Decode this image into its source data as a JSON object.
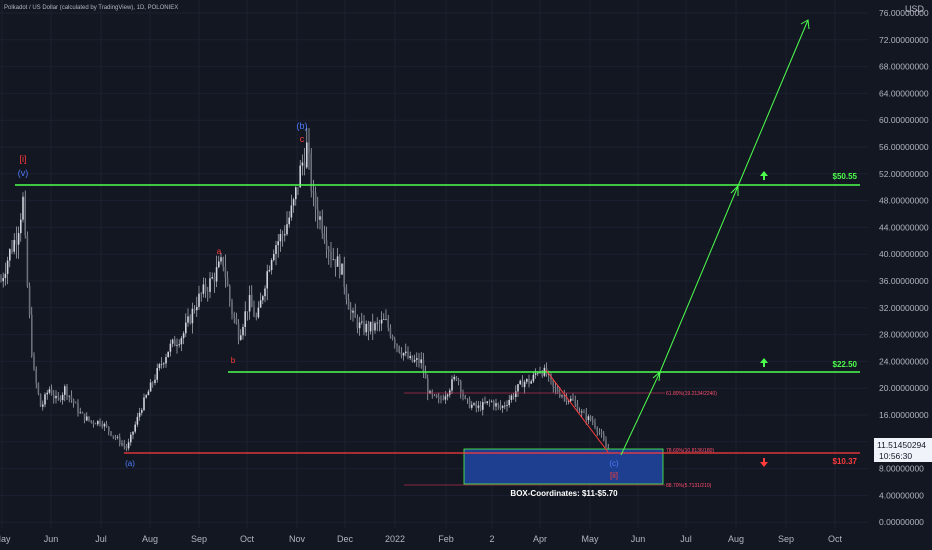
{
  "header": {
    "symbol_line": "Polkadot / US Dollar (calculated by TradingView), 1D, POLONIEX"
  },
  "price_axis": {
    "currency": "USD",
    "ticks": [
      "76.00000000",
      "72.00000000",
      "68.00000000",
      "64.00000000",
      "60.00000000",
      "56.00000000",
      "52.00000000",
      "48.00000000",
      "44.00000000",
      "40.00000000",
      "36.00000000",
      "32.00000000",
      "28.00000000",
      "24.00000000",
      "20.00000000",
      "16.00000000",
      "12.00000000",
      "8.00000000",
      "4.00000000",
      "0.00000000"
    ],
    "current_price": "11.51450294",
    "countdown": "10:56:30"
  },
  "time_axis": {
    "ticks": [
      "May",
      "Jun",
      "Jul",
      "Aug",
      "Sep",
      "Oct",
      "Nov",
      "Dec",
      "2022",
      "Feb",
      "2",
      "Apr",
      "May",
      "Jun",
      "Jul",
      "Aug",
      "Sep",
      "Oct"
    ]
  },
  "levels": [
    {
      "label": "$50.55",
      "value": 50.55,
      "color": "#4cff4c",
      "arrow": "up"
    },
    {
      "label": "$22.50",
      "value": 22.5,
      "color": "#4cff4c",
      "arrow": "up"
    },
    {
      "label": "$10.37",
      "value": 10.37,
      "color": "#ff3b3b",
      "arrow": "down"
    }
  ],
  "box": {
    "label": "BOX-Coordinates: $11-$5.70",
    "top": 11,
    "bottom": 5.7,
    "color": "#1e3f8f"
  },
  "fib_labels": [
    "61.80%(19.2134/2240)",
    "78.60%(10.8136/180)",
    "88.70%(5.7131/210)"
  ],
  "wave_labels": {
    "i_top": "[i]",
    "v_top": "(v)",
    "b_top": "(b)",
    "c_top": "c",
    "a_mid": "a",
    "b_mid": "b",
    "a_bottom": "(a)",
    "c_bottom": "(c)",
    "ii_bottom": "[ii]"
  },
  "colors": {
    "bg": "#131722",
    "candle": "#d1d4dc",
    "green": "#4cff4c",
    "red": "#ff3b3b",
    "blue": "#2962ff"
  },
  "chart_data": {
    "type": "line",
    "title": "Polkadot / US Dollar (calculated by TradingView), 1D, POLONIEX",
    "ylabel": "USD",
    "ylim": [
      0,
      76
    ],
    "x": [
      "May",
      "Jun",
      "Jul",
      "Aug",
      "Sep",
      "Oct",
      "Nov",
      "Dec",
      "2022",
      "Feb",
      "2",
      "Apr",
      "May"
    ],
    "series": [
      {
        "values": [
          38,
          17,
          15,
          11,
          33,
          28,
          50,
          30,
          27,
          18,
          19,
          23,
          11
        ]
      }
    ],
    "horizontal_levels": [
      50.55,
      22.5,
      10.37
    ],
    "projection": {
      "from": 11,
      "via": 22.5,
      "to": 75
    }
  }
}
